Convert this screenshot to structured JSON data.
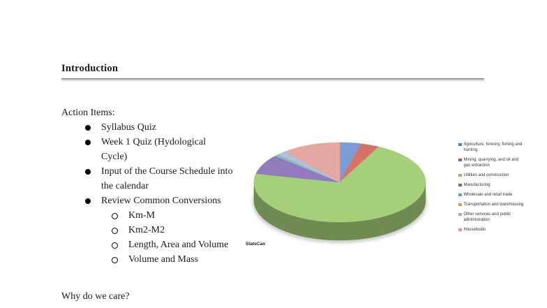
{
  "page": {
    "heading": "Introduction",
    "action_items_label": "Action Items:",
    "action_items": [
      {
        "text": "Syllabus Quiz",
        "sub": []
      },
      {
        "text": "Week 1 Quiz (Hydological Cycle)",
        "sub": []
      },
      {
        "text": "Input of the Course Schedule into the calendar",
        "sub": []
      },
      {
        "text": "Review Common Conversions",
        "sub": [
          "Km-M",
          "Km2-M2",
          "Length, Area and Volume",
          "Volume and Mass"
        ]
      }
    ],
    "closing_question": "Why do we care?"
  },
  "chart_data": {
    "type": "pie",
    "style": "3d",
    "title": "",
    "source_label": "StatsCan",
    "legend_position": "right",
    "values_are_estimated_percent": true,
    "series": [
      {
        "label": "Agriculture, forestry, fishing and hunting",
        "value": 4,
        "color": "#4F81BD",
        "pie_color": "#7e9cd3"
      },
      {
        "label": "Mining, quarrying, and oil and gas extraction",
        "value": 3.5,
        "color": "#C0504D",
        "pie_color": "#d4736a"
      },
      {
        "label": "Utilities and construction",
        "value": 71,
        "color": "#9BBB59",
        "pie_color": "#a6cf7b"
      },
      {
        "label": "Manufacturing",
        "value": 8,
        "color": "#8064A2",
        "pie_color": "#937abd"
      },
      {
        "label": "Wholesale and retail trade",
        "value": 0.8,
        "color": "#4BACC6",
        "pie_color": "#74c0d2"
      },
      {
        "label": "Transportation and warehousing",
        "value": 0.3,
        "color": "#F79646",
        "pie_color": "#f9a868"
      },
      {
        "label": "Other services and public administration",
        "value": 1.4,
        "color": "#95B3D7",
        "pie_color": "#a9c2e6"
      },
      {
        "label": "Households",
        "value": 11,
        "color": "#D99694",
        "pie_color": "#e4a7a1"
      }
    ]
  },
  "colors": {
    "heading_rule": "#8f8f8f",
    "text": "#1b1b1b"
  }
}
